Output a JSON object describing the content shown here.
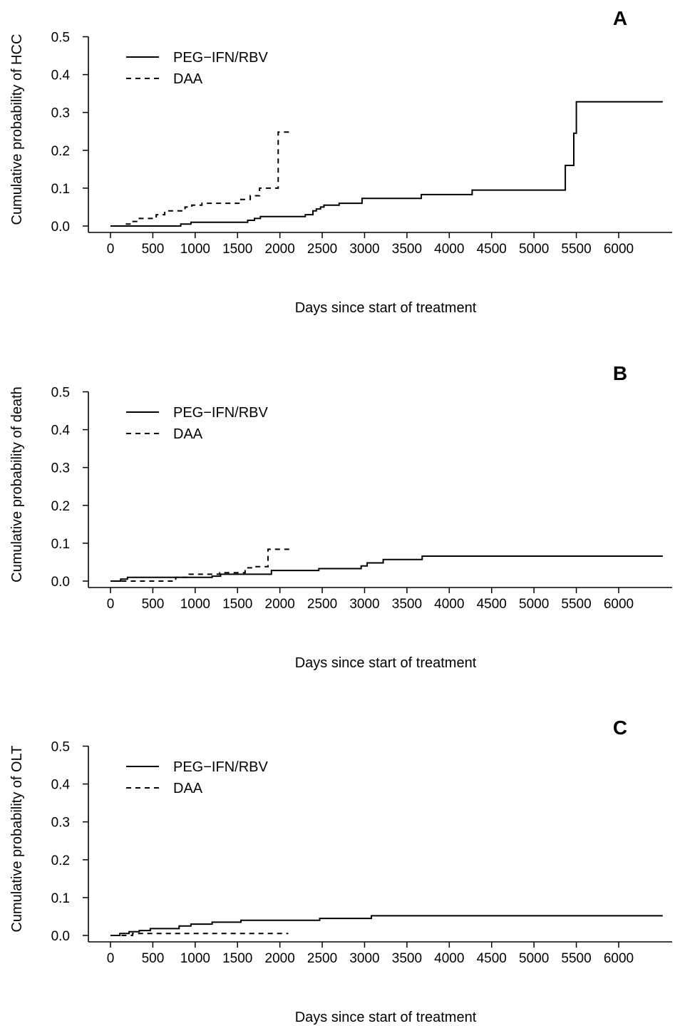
{
  "chart_data": [
    {
      "type": "line",
      "panel_label": "A",
      "ylabel": "Cumulative probability of HCC",
      "xlabel": "Days since start of treatment",
      "ylim": [
        0,
        0.5
      ],
      "yticks": [
        0.0,
        0.1,
        0.2,
        0.3,
        0.4,
        0.5
      ],
      "ytick_labels": [
        "0.0",
        "0.1",
        "0.2",
        "0.3",
        "0.4",
        "0.5"
      ],
      "xticks": [
        0,
        500,
        1000,
        1500,
        2000,
        2500,
        3000,
        3500,
        4000,
        4500,
        5000,
        5500,
        6000
      ],
      "xtick_labels": [
        "0",
        "500",
        "1000",
        "1500",
        "2000",
        "2500",
        "3000",
        "3500",
        "4000",
        "4500",
        "5000",
        "5500",
        "6000"
      ],
      "legend_position": "top-left",
      "series": [
        {
          "name": "PEG−IFN/RBV",
          "style": "solid",
          "x": [
            0,
            830,
            950,
            1620,
            1700,
            1770,
            2300,
            2390,
            2430,
            2480,
            2520,
            2700,
            2970,
            3670,
            4270,
            5370,
            5420,
            5470,
            5500,
            6520
          ],
          "y": [
            0.0,
            0.005,
            0.01,
            0.015,
            0.02,
            0.025,
            0.03,
            0.04,
            0.045,
            0.05,
            0.055,
            0.06,
            0.073,
            0.083,
            0.095,
            0.16,
            0.16,
            0.245,
            0.328,
            0.328
          ]
        },
        {
          "name": "DAA",
          "style": "dashed",
          "x": [
            180,
            250,
            320,
            540,
            640,
            880,
            960,
            1080,
            1540,
            1650,
            1760,
            1960,
            1980,
            2120
          ],
          "y": [
            0.005,
            0.012,
            0.02,
            0.03,
            0.04,
            0.05,
            0.055,
            0.06,
            0.07,
            0.08,
            0.1,
            0.1,
            0.248,
            0.248
          ]
        }
      ]
    },
    {
      "type": "line",
      "panel_label": "B",
      "ylabel": "Cumulative probability of death",
      "xlabel": "Days since start of treatment",
      "ylim": [
        0,
        0.5
      ],
      "yticks": [
        0.0,
        0.1,
        0.2,
        0.3,
        0.4,
        0.5
      ],
      "ytick_labels": [
        "0.0",
        "0.1",
        "0.2",
        "0.3",
        "0.4",
        "0.5"
      ],
      "xticks": [
        0,
        500,
        1000,
        1500,
        2000,
        2500,
        3000,
        3500,
        4000,
        4500,
        5000,
        5500,
        6000
      ],
      "xtick_labels": [
        "0",
        "500",
        "1000",
        "1500",
        "2000",
        "2500",
        "3000",
        "3500",
        "4000",
        "4500",
        "5000",
        "5500",
        "6000"
      ],
      "legend_position": "top-left",
      "series": [
        {
          "name": "PEG−IFN/RBV",
          "style": "solid",
          "x": [
            0,
            120,
            200,
            1200,
            1300,
            1900,
            2460,
            2960,
            3030,
            3220,
            3680,
            6520
          ],
          "y": [
            0.0,
            0.005,
            0.01,
            0.013,
            0.018,
            0.028,
            0.033,
            0.04,
            0.048,
            0.057,
            0.066,
            0.066
          ]
        },
        {
          "name": "DAA",
          "style": "dashed",
          "x": [
            130,
            740,
            770,
            930,
            1290,
            1590,
            1700,
            1860,
            2120
          ],
          "y": [
            0.0,
            0.005,
            0.01,
            0.018,
            0.022,
            0.035,
            0.038,
            0.084,
            0.084
          ]
        }
      ]
    },
    {
      "type": "line",
      "panel_label": "C",
      "ylabel": "Cumulative probability of OLT",
      "xlabel": "Days since start of treatment",
      "ylim": [
        0,
        0.5
      ],
      "yticks": [
        0.0,
        0.1,
        0.2,
        0.3,
        0.4,
        0.5
      ],
      "ytick_labels": [
        "0.0",
        "0.1",
        "0.2",
        "0.3",
        "0.4",
        "0.5"
      ],
      "xticks": [
        0,
        500,
        1000,
        1500,
        2000,
        2500,
        3000,
        3500,
        4000,
        4500,
        5000,
        5500,
        6000
      ],
      "xtick_labels": [
        "0",
        "500",
        "1000",
        "1500",
        "2000",
        "2500",
        "3000",
        "3500",
        "4000",
        "4500",
        "5000",
        "5500",
        "6000"
      ],
      "legend_position": "top-left",
      "series": [
        {
          "name": "PEG−IFN/RBV",
          "style": "solid",
          "x": [
            0,
            110,
            220,
            340,
            470,
            810,
            950,
            1200,
            1540,
            2470,
            3080,
            6520
          ],
          "y": [
            0.0,
            0.005,
            0.01,
            0.013,
            0.018,
            0.025,
            0.03,
            0.035,
            0.04,
            0.045,
            0.052,
            0.052
          ]
        },
        {
          "name": "DAA",
          "style": "dashed",
          "x": [
            130,
            260,
            2100
          ],
          "y": [
            0.0,
            0.005,
            0.005
          ]
        }
      ]
    }
  ]
}
